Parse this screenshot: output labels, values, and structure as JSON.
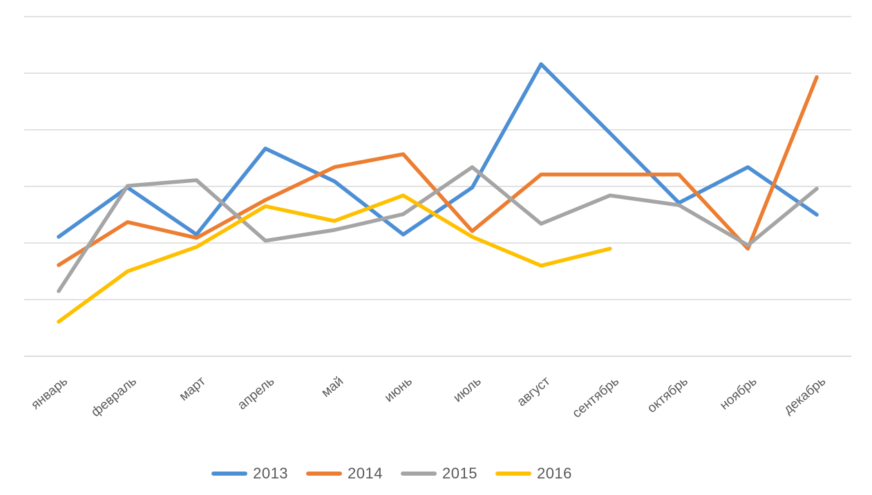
{
  "chart_data": {
    "type": "line",
    "title": "",
    "xlabel": "",
    "ylabel": "",
    "categories": [
      "январь",
      "февраль",
      "март",
      "апрель",
      "май",
      "июнь",
      "июль",
      "август",
      "сентябрь",
      "октябрь",
      "ноябрь",
      "декабрь"
    ],
    "series": [
      {
        "name": "2013",
        "color": "#4D8FD5",
        "values": [
          21.1,
          29.8,
          21.5,
          36.7,
          30.9,
          21.5,
          29.8,
          51.6,
          39.4,
          27.1,
          33.4,
          25.0
        ]
      },
      {
        "name": "2014",
        "color": "#ED7D31",
        "values": [
          16.1,
          23.7,
          20.9,
          27.6,
          33.4,
          35.7,
          22.1,
          32.1,
          32.1,
          32.1,
          19.0,
          49.3
        ]
      },
      {
        "name": "2015",
        "color": "#A5A5A5",
        "values": [
          11.5,
          30.1,
          31.1,
          20.4,
          22.3,
          25.1,
          33.4,
          23.4,
          28.4,
          26.7,
          19.6,
          29.6
        ]
      },
      {
        "name": "2016",
        "color": "#FFC000",
        "values": [
          6.1,
          15.0,
          19.3,
          26.5,
          23.9,
          28.4,
          21.1,
          16.0,
          19.0,
          null,
          null,
          null
        ]
      }
    ],
    "ylim": [
      0,
      60
    ],
    "y_grid_step": 10,
    "grid": "horizontal",
    "gridline_color": "#D9D9D9",
    "axis_line_color": "#D2D2D2",
    "tick_label_color": "#595959",
    "tick_label_rotation_deg": -40,
    "legend_position": "bottom"
  }
}
